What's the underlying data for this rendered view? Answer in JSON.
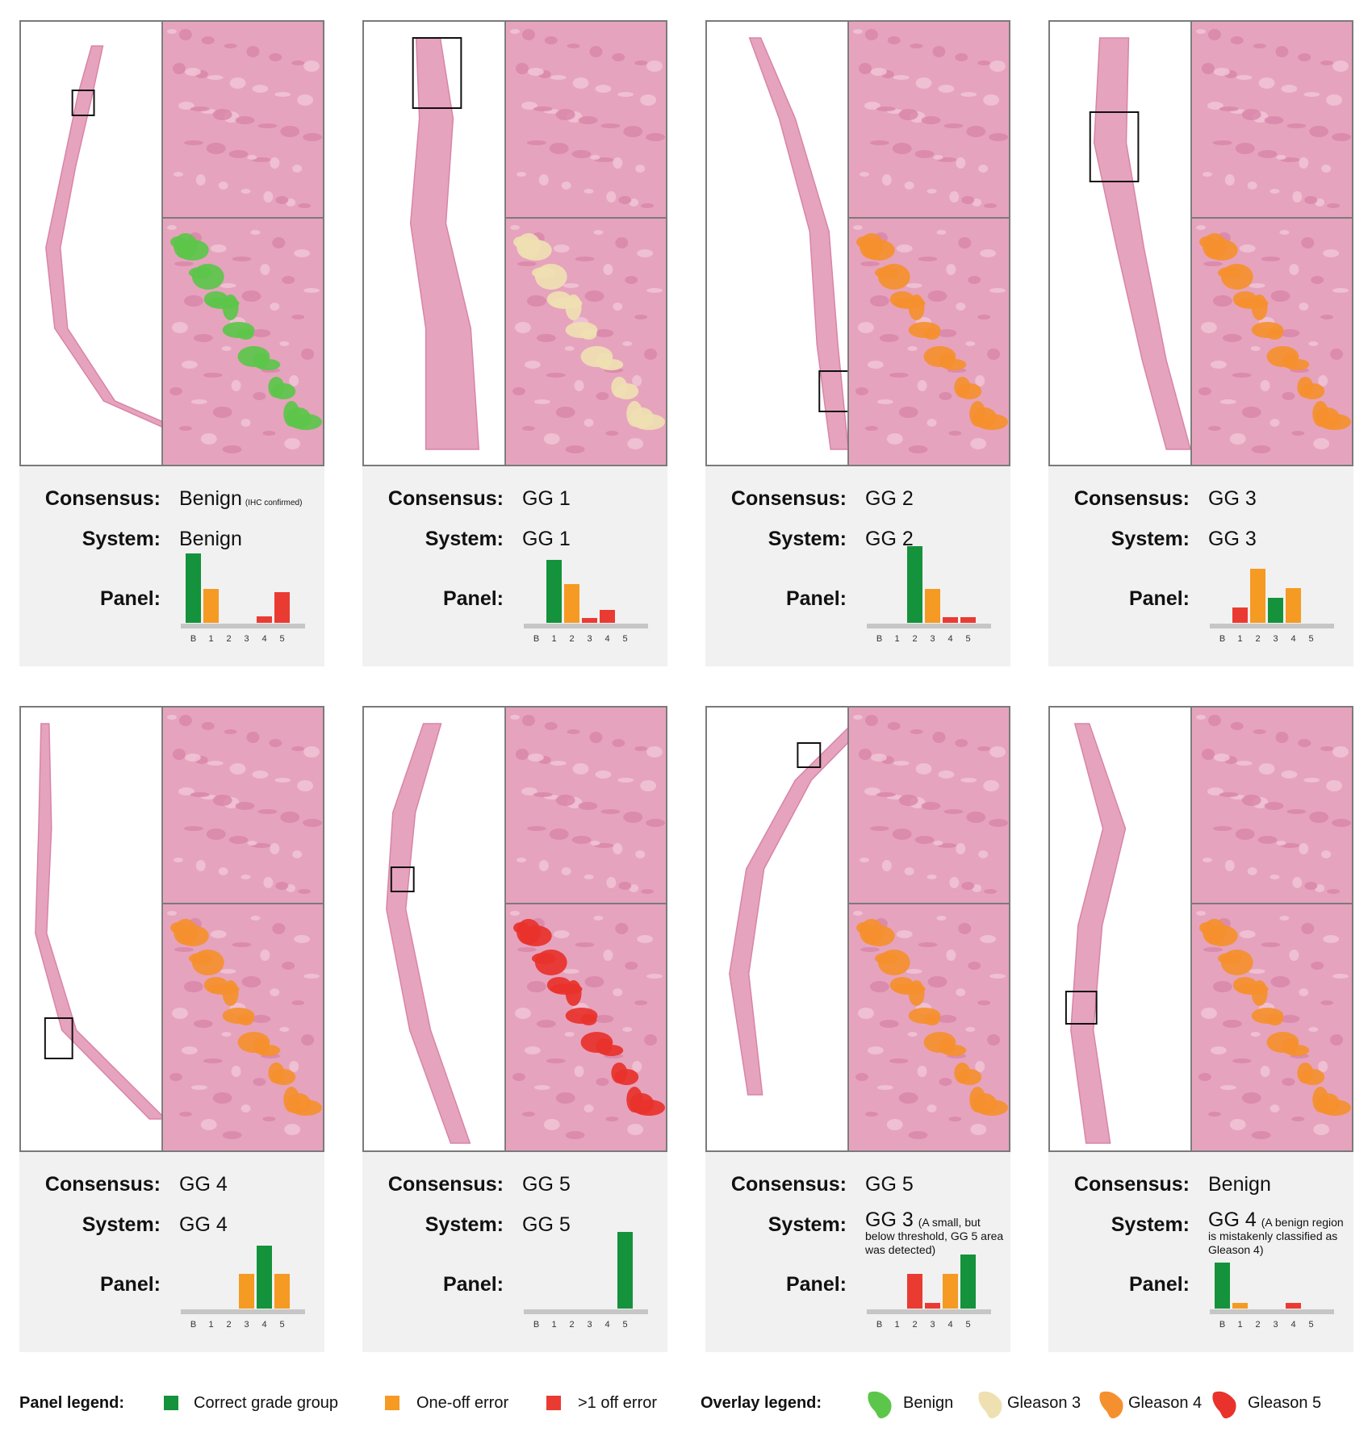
{
  "labels": {
    "consensus": "Consensus:",
    "system": "System:",
    "panel": "Panel:"
  },
  "chart_categories": [
    "B",
    "1",
    "2",
    "3",
    "4",
    "5"
  ],
  "bar_colors": {
    "green": "#14923c",
    "orange": "#f59a23",
    "red": "#ea3b33"
  },
  "cards": [
    {
      "consensus": "Benign",
      "consensus_note": "(IHC confirmed)",
      "system": "Benign",
      "system_note": "",
      "overlay_color": "#5cc64a",
      "overlay_label": "Benign",
      "chart_data": {
        "type": "bar",
        "categories": [
          "B",
          "1",
          "2",
          "3",
          "4",
          "5"
        ],
        "values": [
          0.9,
          0.44,
          0,
          0,
          0.08,
          0.4
        ],
        "colors": [
          "green",
          "orange",
          "",
          "",
          "red",
          "red"
        ]
      }
    },
    {
      "consensus": "GG 1",
      "consensus_note": "",
      "system": "GG 1",
      "system_note": "",
      "overlay_color": "#efe0b2",
      "overlay_label": "Gleason 3",
      "chart_data": {
        "type": "bar",
        "categories": [
          "B",
          "1",
          "2",
          "3",
          "4",
          "5"
        ],
        "values": [
          0,
          0.82,
          0.5,
          0.06,
          0.17,
          0
        ],
        "colors": [
          "",
          "green",
          "orange",
          "red",
          "red",
          ""
        ]
      }
    },
    {
      "consensus": "GG 2",
      "consensus_note": "",
      "system": "GG 2",
      "system_note": "",
      "overlay_color": "#f5902e",
      "overlay_label": "Gleason 4",
      "chart_data": {
        "type": "bar",
        "categories": [
          "B",
          "1",
          "2",
          "3",
          "4",
          "5"
        ],
        "values": [
          0,
          0,
          1.0,
          0.44,
          0.07,
          0.07
        ],
        "colors": [
          "",
          "",
          "green",
          "orange",
          "red",
          "red"
        ]
      }
    },
    {
      "consensus": "GG 3",
      "consensus_note": "",
      "system": "GG 3",
      "system_note": "",
      "overlay_color": "#f5902e",
      "overlay_label": "Gleason 4",
      "chart_data": {
        "type": "bar",
        "categories": [
          "B",
          "1",
          "2",
          "3",
          "4",
          "5"
        ],
        "values": [
          0,
          0.2,
          0.7,
          0.33,
          0.45,
          0
        ],
        "colors": [
          "",
          "red",
          "orange",
          "green",
          "orange",
          ""
        ]
      }
    },
    {
      "consensus": "GG 4",
      "consensus_note": "",
      "system": "GG 4",
      "system_note": "",
      "overlay_color": "#f5902e",
      "overlay_label": "Gleason 4",
      "chart_data": {
        "type": "bar",
        "categories": [
          "B",
          "1",
          "2",
          "3",
          "4",
          "5"
        ],
        "values": [
          0,
          0,
          0,
          0.45,
          0.82,
          0.45
        ],
        "colors": [
          "",
          "",
          "",
          "orange",
          "green",
          "orange"
        ]
      }
    },
    {
      "consensus": "GG 5",
      "consensus_note": "",
      "system": "GG 5",
      "system_note": "",
      "overlay_color": "#e8322b",
      "overlay_label": "Gleason 5",
      "chart_data": {
        "type": "bar",
        "categories": [
          "B",
          "1",
          "2",
          "3",
          "4",
          "5"
        ],
        "values": [
          0,
          0,
          0,
          0,
          0,
          1.0
        ],
        "colors": [
          "",
          "",
          "",
          "",
          "",
          "green"
        ]
      }
    },
    {
      "consensus": "GG 5",
      "consensus_note": "",
      "system": "GG 3",
      "system_note": "(A small, but below threshold, GG 5 area was detected)",
      "overlay_color": "#f5902e",
      "overlay_label": "Gleason 4",
      "chart_data": {
        "type": "bar",
        "categories": [
          "B",
          "1",
          "2",
          "3",
          "4",
          "5"
        ],
        "values": [
          0,
          0,
          0.45,
          0.07,
          0.45,
          0.7
        ],
        "colors": [
          "",
          "",
          "red",
          "red",
          "orange",
          "green"
        ]
      }
    },
    {
      "consensus": "Benign",
      "consensus_note": "",
      "system": "GG 4",
      "system_note": "(A benign region is mistakenly classified as Gleason 4)",
      "overlay_color": "#f5902e",
      "overlay_label": "Gleason 4",
      "chart_data": {
        "type": "bar",
        "categories": [
          "B",
          "1",
          "2",
          "3",
          "4",
          "5"
        ],
        "values": [
          0.6,
          0.07,
          0,
          0,
          0.07,
          0
        ],
        "colors": [
          "green",
          "orange",
          "",
          "",
          "red",
          ""
        ]
      }
    }
  ],
  "legend": {
    "panel_title": "Panel legend:",
    "panel_items": [
      {
        "label": "Correct grade group",
        "color": "#14923c"
      },
      {
        "label": "One-off error",
        "color": "#f59a23"
      },
      {
        "label": ">1 off error",
        "color": "#ea3b33"
      }
    ],
    "overlay_title": "Overlay legend:",
    "overlay_items": [
      {
        "label": "Benign",
        "color": "#5cc64a"
      },
      {
        "label": "Gleason 3",
        "color": "#efe0b2"
      },
      {
        "label": "Gleason 4",
        "color": "#f5902e"
      },
      {
        "label": "Gleason 5",
        "color": "#e8322b"
      }
    ]
  }
}
